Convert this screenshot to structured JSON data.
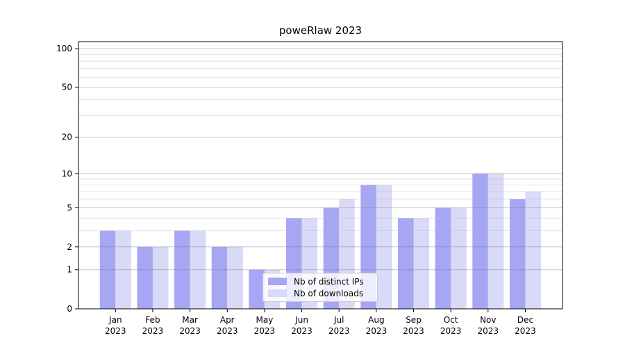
{
  "chart_data": {
    "type": "bar",
    "title": "poweRlaw 2023",
    "categories": [
      "Jan 2023",
      "Feb 2023",
      "Mar 2023",
      "Apr 2023",
      "May 2023",
      "Jun 2023",
      "Jul 2023",
      "Aug 2023",
      "Sep 2023",
      "Oct 2023",
      "Nov 2023",
      "Dec 2023"
    ],
    "series": [
      {
        "name": "Nb of distinct IPs",
        "color": "#a6a6f4",
        "values": [
          3,
          2,
          3,
          2,
          1,
          4,
          5,
          8,
          4,
          5,
          10,
          6
        ]
      },
      {
        "name": "Nb of downloads",
        "color": "#d9d9f8",
        "values": [
          3,
          2,
          3,
          2,
          1,
          4,
          6,
          8,
          4,
          5,
          10,
          7
        ]
      }
    ],
    "xlabel": "",
    "ylabel": "",
    "yscale": "log10(1+y)",
    "y_ticks": [
      0,
      1,
      2,
      5,
      10,
      20,
      50,
      100
    ],
    "y_minor_gridlines": [
      3,
      4,
      6,
      7,
      8,
      9,
      30,
      40,
      60,
      70,
      80,
      90
    ],
    "ylim": [
      0,
      114
    ],
    "grid": "on",
    "legend_position": "lower-center",
    "colors": {
      "background": "#ffffff",
      "axis": "#000000",
      "text": "#000000",
      "major_grid": "#c6c6c6",
      "minor_grid": "#e9e9e9",
      "legend_border": "#cccccc",
      "legend_background": "rgba(255,255,255,0.8)"
    }
  }
}
